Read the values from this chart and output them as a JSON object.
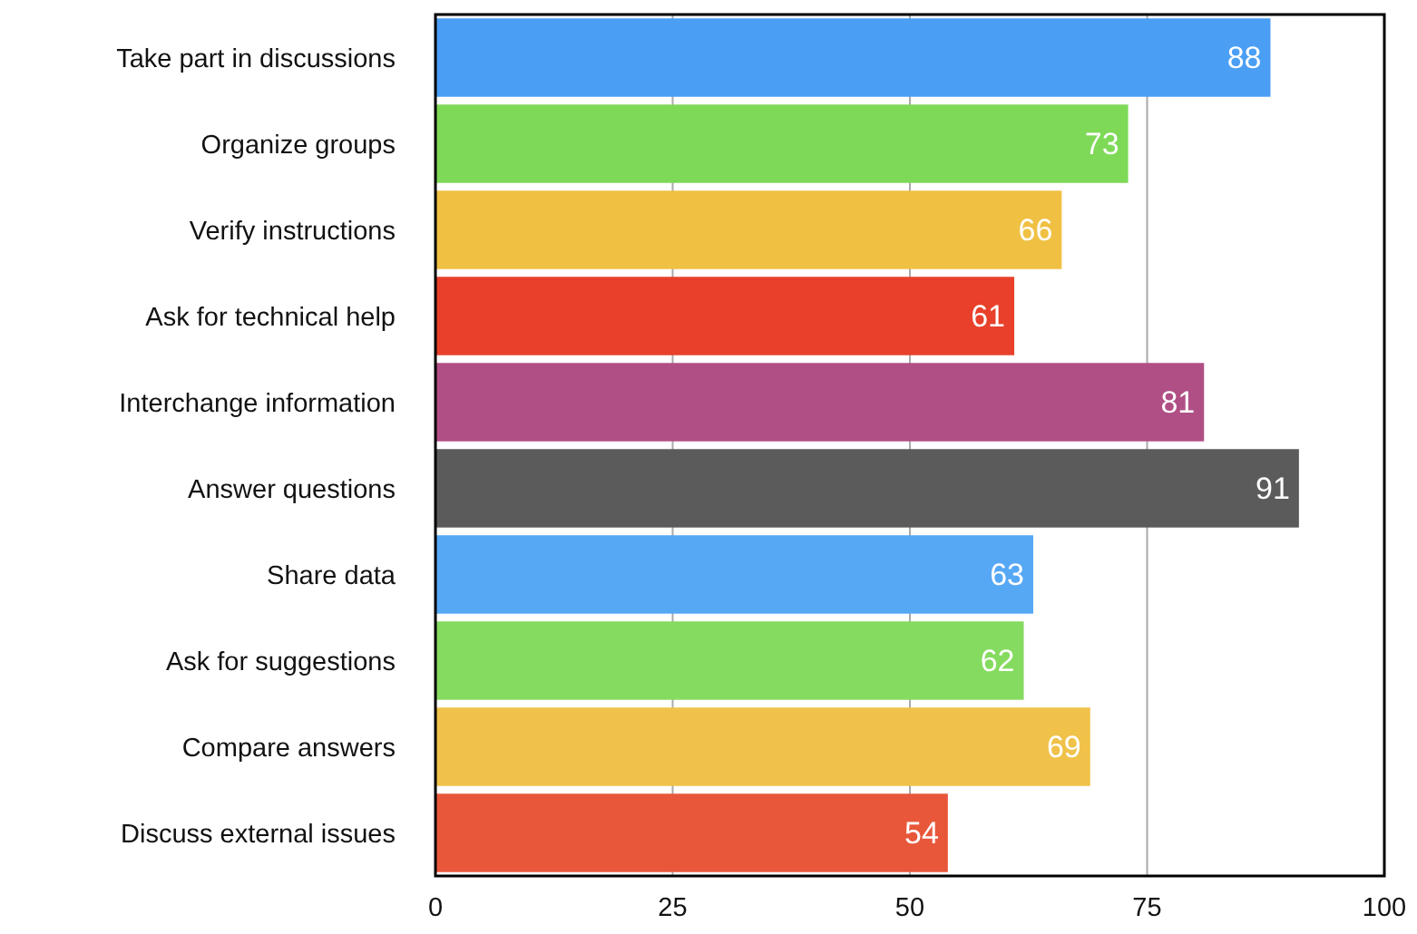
{
  "chart_data": {
    "type": "bar",
    "orientation": "horizontal",
    "categories": [
      "Take part in discussions",
      "Organize groups",
      "Verify instructions",
      "Ask for technical help",
      "Interchange information",
      "Answer questions",
      "Share data",
      "Ask for suggestions",
      "Compare answers",
      "Discuss external issues"
    ],
    "values": [
      88,
      73,
      66,
      61,
      81,
      91,
      63,
      62,
      69,
      54
    ],
    "colors": [
      "#4a9ff5",
      "#7ed957",
      "#f0c043",
      "#e8402a",
      "#b04f86",
      "#5b5b5b",
      "#56a8f5",
      "#85db60",
      "#f0c24a",
      "#e8573a"
    ],
    "xlim": [
      0,
      100
    ],
    "xticks": [
      0,
      25,
      50,
      75,
      100
    ],
    "grid": "x",
    "data_labels": true
  }
}
